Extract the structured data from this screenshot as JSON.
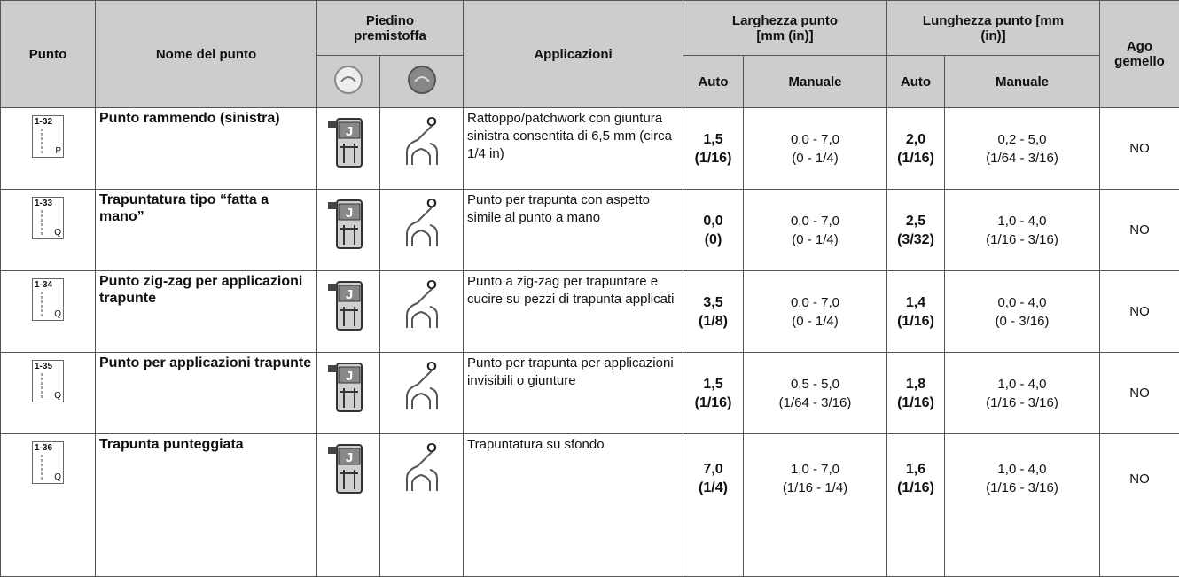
{
  "header": {
    "punto": "Punto",
    "nome": "Nome del punto",
    "piedino": "Piedino premistoffa",
    "applicazioni": "Applicazioni",
    "larghezza": {
      "title": "Larghezza punto [mm (in)]",
      "auto": "Auto",
      "manuale": "Manuale"
    },
    "lunghezza": {
      "title": "Lunghezza punto [mm (in)]",
      "auto": "Auto",
      "manuale": "Manuale"
    },
    "ago": "Ago gemello"
  },
  "icons": {
    "foot_j": "J",
    "foot_o": "O"
  },
  "rows": [
    {
      "code": "1-32",
      "letter": "P",
      "name": "Punto rammendo (sinistra)",
      "application": "Rattoppo/patchwork con giuntura sinistra consentita di 6,5 mm (circa 1/4 in)",
      "width_auto": [
        "1,5",
        "(1/16)"
      ],
      "width_manual": [
        "0,0 - 7,0",
        "(0 - 1/4)"
      ],
      "length_auto": [
        "2,0",
        "(1/16)"
      ],
      "length_manual": [
        "0,2 - 5,0",
        "(1/64 - 3/16)"
      ],
      "twin": "NO"
    },
    {
      "code": "1-33",
      "letter": "Q",
      "name": "Trapuntatura tipo “fatta a mano”",
      "application": "Punto per trapunta con aspetto simile al punto a mano",
      "width_auto": [
        "0,0",
        "(0)"
      ],
      "width_manual": [
        "0,0 - 7,0",
        "(0 - 1/4)"
      ],
      "length_auto": [
        "2,5",
        "(3/32)"
      ],
      "length_manual": [
        "1,0 - 4,0",
        "(1/16 - 3/16)"
      ],
      "twin": "NO"
    },
    {
      "code": "1-34",
      "letter": "Q",
      "name": "Punto zig-zag per applicazioni trapunte",
      "application": "Punto a zig-zag per trapuntare e cucire su pezzi di trapunta applicati",
      "width_auto": [
        "3,5",
        "(1/8)"
      ],
      "width_manual": [
        "0,0 - 7,0",
        "(0 - 1/4)"
      ],
      "length_auto": [
        "1,4",
        "(1/16)"
      ],
      "length_manual": [
        "0,0 - 4,0",
        "(0 - 3/16)"
      ],
      "twin": "NO"
    },
    {
      "code": "1-35",
      "letter": "Q",
      "name": "Punto per applicazioni trapunte",
      "application": "Punto per trapunta per applicazioni invisibili o giunture",
      "width_auto": [
        "1,5",
        "(1/16)"
      ],
      "width_manual": [
        "0,5 - 5,0",
        "(1/64 - 3/16)"
      ],
      "length_auto": [
        "1,8",
        "(1/16)"
      ],
      "length_manual": [
        "1,0 - 4,0",
        "(1/16 - 3/16)"
      ],
      "twin": "NO"
    },
    {
      "code": "1-36",
      "letter": "Q",
      "name": "Trapunta punteggiata",
      "application": "Trapuntatura su sfondo",
      "width_auto": [
        "7,0",
        "(1/4)"
      ],
      "width_manual": [
        "1,0 - 7,0",
        "(1/16 - 1/4)"
      ],
      "length_auto": [
        "1,6",
        "(1/16)"
      ],
      "length_manual": [
        "1,0 - 4,0",
        "(1/16 - 3/16)"
      ],
      "twin": "NO"
    }
  ]
}
